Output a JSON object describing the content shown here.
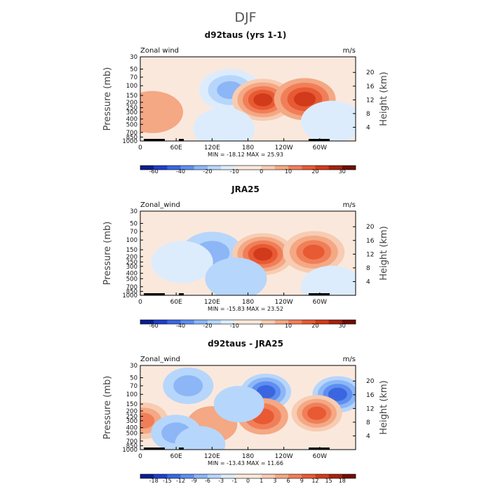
{
  "figure_title": "DJF",
  "chart_data": [
    {
      "type": "heatmap",
      "title": "d92taus (yrs 1-1)",
      "variable_label": "Zonal wind",
      "units_label": "m/s",
      "xlabel": "",
      "ylabel": "Pressure (mb)",
      "y2label": "Height (km)",
      "x_ticks": [
        "0",
        "60E",
        "120E",
        "180",
        "120W",
        "60W"
      ],
      "y_ticks": [
        "30",
        "50",
        "70",
        "100",
        "150",
        "200",
        "250",
        "300",
        "400",
        "500",
        "700",
        "850",
        "1000"
      ],
      "y2_ticks": [
        "20",
        "16",
        "12",
        "8",
        "4"
      ],
      "stats": "MIN = -18.12   MAX =  25.93",
      "min": -18.12,
      "max": 25.93,
      "colorbar_ticks": [
        "-60",
        "-40",
        "-20",
        "-10",
        "0",
        "10",
        "20",
        "30"
      ],
      "features": [
        {
          "lon": 150,
          "p": 120,
          "value": -14
        },
        {
          "lon": 205,
          "p": 180,
          "value": 24
        },
        {
          "lon": 275,
          "p": 175,
          "value": 21
        },
        {
          "lon": 20,
          "p": 300,
          "value": 6
        },
        {
          "lon": 140,
          "p": 600,
          "value": -4
        },
        {
          "lon": 320,
          "p": 450,
          "value": -4
        }
      ]
    },
    {
      "type": "heatmap",
      "title": "JRA25",
      "variable_label": "Zonal_wind",
      "units_label": "m/s",
      "xlabel": "",
      "ylabel": "Pressure (mb)",
      "y2label": "Height (km)",
      "x_ticks": [
        "0",
        "60E",
        "120E",
        "180",
        "120W",
        "60W"
      ],
      "y_ticks": [
        "30",
        "50",
        "70",
        "100",
        "150",
        "200",
        "250",
        "300",
        "400",
        "500",
        "700",
        "850",
        "1000"
      ],
      "y2_ticks": [
        "20",
        "16",
        "12",
        "8",
        "4"
      ],
      "stats": "MIN = -15.83   MAX =  23.52",
      "min": -15.83,
      "max": 23.52,
      "colorbar_ticks": [
        "-60",
        "-40",
        "-20",
        "-10",
        "0",
        "10",
        "20",
        "30"
      ],
      "features": [
        {
          "lon": 120,
          "p": 170,
          "value": -12
        },
        {
          "lon": 205,
          "p": 180,
          "value": 23
        },
        {
          "lon": 290,
          "p": 165,
          "value": 19
        },
        {
          "lon": 70,
          "p": 250,
          "value": -4
        },
        {
          "lon": 160,
          "p": 500,
          "value": -5
        },
        {
          "lon": 320,
          "p": 700,
          "value": -3
        }
      ]
    },
    {
      "type": "heatmap",
      "title": "d92taus - JRA25",
      "variable_label": "Zonal_wind",
      "units_label": "m/s",
      "xlabel": "",
      "ylabel": "Pressure (mb)",
      "y2label": "Height (km)",
      "x_ticks": [
        "0",
        "60E",
        "120E",
        "180",
        "120W",
        "60W"
      ],
      "y_ticks": [
        "30",
        "50",
        "70",
        "100",
        "150",
        "200",
        "250",
        "300",
        "400",
        "500",
        "700",
        "850",
        "1000"
      ],
      "y2_ticks": [
        "20",
        "16",
        "12",
        "8",
        "4"
      ],
      "stats": "MIN = -13.43   MAX =  11.66",
      "min": -13.43,
      "max": 11.66,
      "colorbar_ticks": [
        "-18",
        "-15",
        "-12",
        "-9",
        "-6",
        "-3",
        "-1",
        "0",
        "1",
        "3",
        "6",
        "9",
        "12",
        "15",
        "18"
      ],
      "features": [
        {
          "lon": 210,
          "p": 90,
          "value": -12
        },
        {
          "lon": 330,
          "p": 100,
          "value": -12
        },
        {
          "lon": 80,
          "p": 70,
          "value": -7
        },
        {
          "lon": 205,
          "p": 250,
          "value": 10
        },
        {
          "lon": 295,
          "p": 220,
          "value": 11
        },
        {
          "lon": 5,
          "p": 300,
          "value": 8
        },
        {
          "lon": 120,
          "p": 350,
          "value": 4
        },
        {
          "lon": 60,
          "p": 500,
          "value": -6
        },
        {
          "lon": 165,
          "p": 150,
          "value": -3
        },
        {
          "lon": 100,
          "p": 800,
          "value": -3
        }
      ]
    }
  ],
  "colors": {
    "negative": [
      "#0b1e8c",
      "#1f3fc8",
      "#3b66e0",
      "#5d8ef0",
      "#8cb6f6",
      "#b7d6fb",
      "#dcecfd"
    ],
    "zero": "#fbe8dc",
    "positive": [
      "#f7ccb2",
      "#f4a884",
      "#f07f59",
      "#e85a33",
      "#d13a1a",
      "#a4220f",
      "#6e0e05"
    ]
  }
}
